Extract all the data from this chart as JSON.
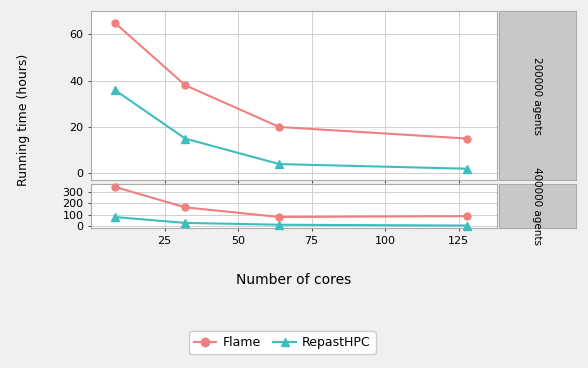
{
  "cores": [
    8,
    32,
    64,
    128
  ],
  "flame_200k": [
    65,
    38,
    20,
    15
  ],
  "repast_200k": [
    36,
    15,
    4,
    2
  ],
  "flame_400k": [
    345,
    165,
    80,
    88
  ],
  "repast_400k": [
    80,
    28,
    12,
    5
  ],
  "flame_color": "#f08080",
  "repast_color": "#3dbdbd",
  "xlabel": "Number of cores",
  "ylabel": "Running time (hours)",
  "label_200k": "200000 agents",
  "label_400k": "400000 agents",
  "legend_flame": "Flame",
  "legend_repast": "RepastHPC",
  "xticks": [
    25,
    50,
    75,
    100,
    125
  ],
  "yticks_top": [
    0,
    20,
    40,
    60
  ],
  "yticks_bottom": [
    0,
    100,
    200,
    300
  ],
  "background_color": "#f0f0f0",
  "panel_bg": "#ffffff",
  "strip_bg": "#c8c8c8"
}
